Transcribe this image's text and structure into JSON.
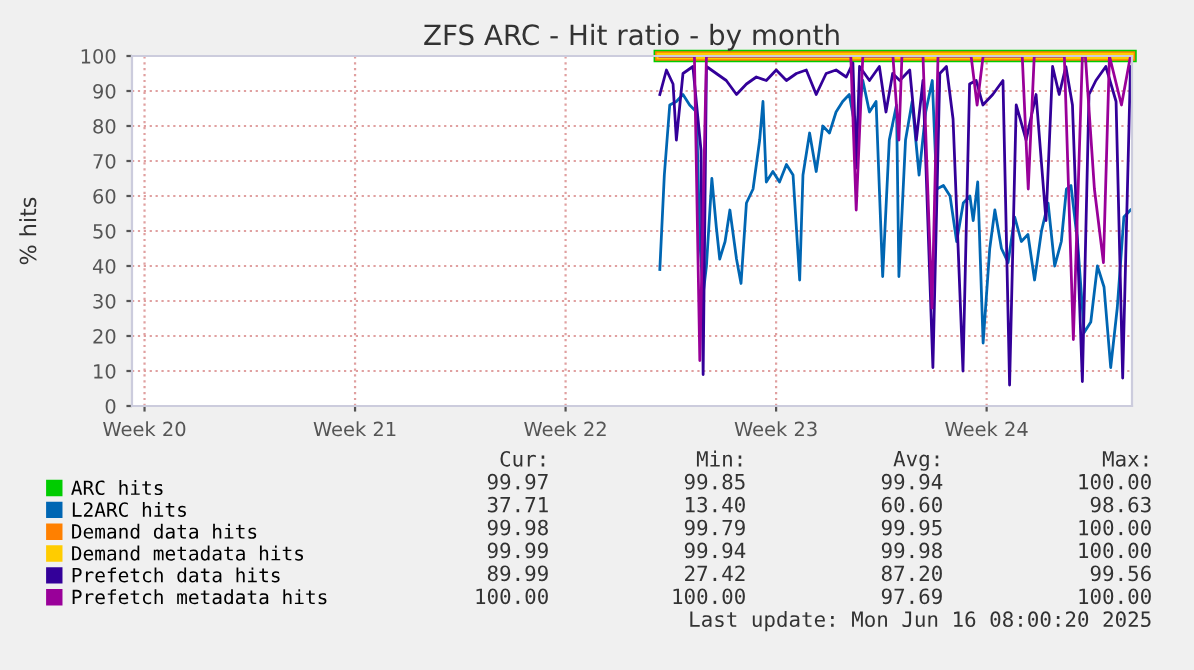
{
  "chart_data": {
    "type": "line",
    "title": "ZFS ARC - Hit ratio - by month",
    "ylabel": "% hits",
    "xlim": [
      "2025-05-14T02:00",
      "2025-06-16T08:00"
    ],
    "xticks": [
      {
        "value": "2025-05-14T12:00",
        "label": "Week 20"
      },
      {
        "value": "2025-05-21T12:00",
        "label": "Week 21"
      },
      {
        "value": "2025-05-28T12:00",
        "label": "Week 22"
      },
      {
        "value": "2025-06-04T12:00",
        "label": "Week 23"
      },
      {
        "value": "2025-06-11T12:00",
        "label": "Week 24"
      }
    ],
    "ylim": [
      0,
      100
    ],
    "yticks": [
      0,
      10,
      20,
      30,
      40,
      50,
      60,
      70,
      80,
      90,
      100
    ],
    "grid": true,
    "legend": "bottom left",
    "marker": "none",
    "line_style": "solid",
    "series": [
      {
        "name": "ARC hits",
        "color": "#00cc00",
        "x": [
          "2025-05-31T15:12",
          "2025-06-03T02:00",
          "2025-06-05T14:00",
          "2025-06-08T02:00",
          "2025-06-10T14:00",
          "2025-06-13T02:00",
          "2025-06-15T02:00",
          "2025-06-16T06:48"
        ],
        "values": [
          100,
          100,
          100,
          100,
          100,
          100,
          100,
          100
        ]
      },
      {
        "name": "L2ARC hits",
        "color": "#0066b3",
        "x": [
          "2025-05-31T15:12",
          "2025-05-31T18:48",
          "2025-05-31T23:07",
          "2025-06-01T04:24",
          "2025-06-01T09:41",
          "2025-06-01T15:00",
          "2025-06-01T20:29",
          "2025-06-01T23:07",
          "2025-06-02T01:46",
          "2025-06-02T04:24",
          "2025-06-02T08:43",
          "2025-06-02T12:19",
          "2025-06-02T15:00",
          "2025-06-02T19:17",
          "2025-06-02T23:07",
          "2025-06-03T04:24",
          "2025-06-03T08:00",
          "2025-06-03T12:19",
          "2025-06-03T17:36",
          "2025-06-03T22:53",
          "2025-06-04T01:31",
          "2025-06-04T04:10",
          "2025-06-04T09:26",
          "2025-06-04T14:43",
          "2025-06-04T20:14",
          "2025-06-05T01:31",
          "2025-06-05T06:48",
          "2025-06-05T09:26",
          "2025-06-05T14:43",
          "2025-06-05T20:00",
          "2025-06-06T01:17",
          "2025-06-06T06:34",
          "2025-06-06T11:50",
          "2025-06-06T17:07",
          "2025-06-06T22:24",
          "2025-06-07T03:55",
          "2025-06-07T09:12",
          "2025-06-07T14:29",
          "2025-06-07T19:46",
          "2025-06-08T01:02",
          "2025-06-08T06:19",
          "2025-06-08T12:05",
          "2025-06-08T14:00",
          "2025-06-08T19:17",
          "2025-06-09T00:34",
          "2025-06-09T06:05",
          "2025-06-09T11:22",
          "2025-06-09T16:38",
          "2025-06-09T20:14",
          "2025-06-10T01:31",
          "2025-06-10T06:48",
          "2025-06-10T12:05",
          "2025-06-10T17:22",
          "2025-06-10T22:38",
          "2025-06-11T01:17",
          "2025-06-11T04:53",
          "2025-06-11T09:12",
          "2025-06-11T14:29",
          "2025-06-11T18:34",
          "2025-06-11T23:50",
          "2025-06-12T05:07",
          "2025-06-12T10:24",
          "2025-06-12T15:41",
          "2025-06-12T20:58",
          "2025-06-13T02:14",
          "2025-06-13T07:46",
          "2025-06-13T13:02",
          "2025-06-13T18:19",
          "2025-06-13T23:36",
          "2025-06-14T03:41",
          "2025-06-14T07:17",
          "2025-06-14T12:34",
          "2025-06-14T17:50",
          "2025-06-14T23:07",
          "2025-06-15T04:24",
          "2025-06-15T09:41",
          "2025-06-15T15:00",
          "2025-06-15T20:14",
          "2025-06-16T01:31",
          "2025-06-16T06:48"
        ],
        "values": [
          39,
          66,
          86,
          87,
          89,
          86,
          84,
          47,
          32,
          40,
          65,
          51,
          42,
          47,
          56,
          42,
          35,
          58,
          62,
          76,
          87,
          64,
          67,
          64,
          69,
          66,
          36,
          66,
          78,
          67,
          80,
          78,
          84,
          87,
          89,
          78,
          93,
          84,
          87,
          37,
          76,
          86,
          37,
          76,
          87,
          66,
          84,
          93,
          62,
          63,
          60,
          47,
          58,
          60,
          53,
          64,
          18,
          45,
          56,
          45,
          41,
          54,
          47,
          49,
          36,
          50,
          58,
          40,
          47,
          62,
          63,
          47,
          21,
          24,
          40,
          34,
          11,
          28,
          54,
          56
        ]
      },
      {
        "name": "Demand data hits",
        "color": "#ff8000",
        "x": [
          "2025-05-31T15:12",
          "2025-06-03T02:00",
          "2025-06-05T14:00",
          "2025-06-08T02:00",
          "2025-06-10T14:00",
          "2025-06-13T02:00",
          "2025-06-15T02:00",
          "2025-06-16T06:48"
        ],
        "values": [
          100,
          100,
          100,
          100,
          100,
          100,
          100,
          100
        ]
      },
      {
        "name": "Demand metadata hits",
        "color": "#ffcc00",
        "x": [
          "2025-05-31T15:12",
          "2025-06-03T02:00",
          "2025-06-05T14:00",
          "2025-06-08T02:00",
          "2025-06-10T14:00",
          "2025-06-13T02:00",
          "2025-06-15T02:00",
          "2025-06-16T06:48"
        ],
        "values": [
          100,
          100,
          100,
          100,
          100,
          100,
          100,
          100
        ]
      },
      {
        "name": "Prefetch data hits",
        "color": "#330099",
        "x": [
          "2025-05-31T15:12",
          "2025-05-31T20:29",
          "2025-06-01T01:46",
          "2025-06-01T04:24",
          "2025-06-01T09:41",
          "2025-06-01T17:36",
          "2025-06-02T00:05",
          "2025-06-02T01:46",
          "2025-06-02T04:24",
          "2025-06-02T12:19",
          "2025-06-02T20:14",
          "2025-06-03T04:24",
          "2025-06-03T12:19",
          "2025-06-03T20:14",
          "2025-06-04T04:10",
          "2025-06-04T12:05",
          "2025-06-04T20:14",
          "2025-06-05T04:10",
          "2025-06-05T12:05",
          "2025-06-05T20:00",
          "2025-06-06T03:55",
          "2025-06-06T11:50",
          "2025-06-06T20:00",
          "2025-06-07T01:17",
          "2025-06-07T03:55",
          "2025-06-07T06:34",
          "2025-06-07T14:29",
          "2025-06-07T22:24",
          "2025-06-08T03:41",
          "2025-06-08T09:00",
          "2025-06-08T14:43",
          "2025-06-08T22:38",
          "2025-06-09T03:55",
          "2025-06-09T09:12",
          "2025-06-09T17:07",
          "2025-06-09T22:38",
          "2025-06-10T03:55",
          "2025-06-10T09:12",
          "2025-06-10T17:07",
          "2025-06-10T22:24",
          "2025-06-11T03:41",
          "2025-06-11T09:00",
          "2025-06-11T16:53",
          "2025-06-12T01:02",
          "2025-06-12T06:19",
          "2025-06-12T11:36",
          "2025-06-12T19:31",
          "2025-06-13T03:26",
          "2025-06-13T11:22",
          "2025-06-13T16:38",
          "2025-06-13T21:55",
          "2025-06-14T03:12",
          "2025-06-14T08:29",
          "2025-06-14T16:24",
          "2025-06-14T21:41",
          "2025-06-15T03:12",
          "2025-06-15T11:07",
          "2025-06-15T19:17",
          "2025-06-16T00:34",
          "2025-06-16T06:48"
        ],
        "values": [
          89,
          96,
          92,
          76,
          95,
          97,
          73,
          9,
          97,
          95,
          93,
          89,
          92,
          94,
          93,
          96,
          93,
          95,
          96,
          89,
          95,
          96,
          94,
          98,
          68,
          97,
          93,
          97,
          84,
          95,
          93,
          96,
          76,
          93,
          11,
          95,
          97,
          82,
          10,
          92,
          93,
          86,
          89,
          93,
          6,
          86,
          76,
          89,
          53,
          97,
          89,
          97,
          86,
          7,
          89,
          93,
          97,
          87,
          8,
          97
        ]
      },
      {
        "name": "Prefetch metadata hits",
        "color": "#990099",
        "x": [
          "2025-05-31T15:12",
          "2025-06-01T09:12",
          "2025-06-01T18:48",
          "2025-06-01T23:07",
          "2025-06-02T04:24",
          "2025-06-03T02:00",
          "2025-06-05T02:00",
          "2025-06-06T02:00",
          "2025-06-06T23:36",
          "2025-06-07T03:55",
          "2025-06-07T09:12",
          "2025-06-08T02:00",
          "2025-06-08T09:12",
          "2025-06-08T14:00",
          "2025-06-08T16:24",
          "2025-06-09T09:12",
          "2025-06-09T16:24",
          "2025-06-09T21:12",
          "2025-06-10T23:36",
          "2025-06-11T04:24",
          "2025-06-11T09:12",
          "2025-06-12T16:24",
          "2025-06-12T21:12",
          "2025-06-13T02:00",
          "2025-06-14T02:00",
          "2025-06-14T09:12",
          "2025-06-14T16:24",
          "2025-06-14T18:48",
          "2025-06-15T02:00",
          "2025-06-15T09:12",
          "2025-06-15T14:00",
          "2025-06-15T23:36",
          "2025-06-16T06:48"
        ],
        "values": [
          100,
          100,
          100,
          13,
          100,
          100,
          100,
          100,
          100,
          56,
          100,
          100,
          100,
          76,
          100,
          100,
          28,
          100,
          100,
          86,
          100,
          100,
          62,
          100,
          100,
          19,
          100,
          100,
          62,
          41,
          100,
          86,
          100
        ]
      }
    ],
    "annotations": [
      "Cur:",
      "Min:",
      "Avg:",
      "Max:",
      "99.97",
      "99.85",
      "99.94",
      "100.00",
      "37.71",
      "13.40",
      "60.60",
      "98.63",
      "99.98",
      "99.79",
      "99.95",
      "100.00",
      "99.99",
      "99.94",
      "99.98",
      "100.00",
      "89.99",
      "27.42",
      "87.20",
      "99.56",
      "100.00",
      "100.00",
      "97.69",
      "100.00",
      "Last update: Mon Jun 16 08:00:20 2025"
    ]
  }
}
